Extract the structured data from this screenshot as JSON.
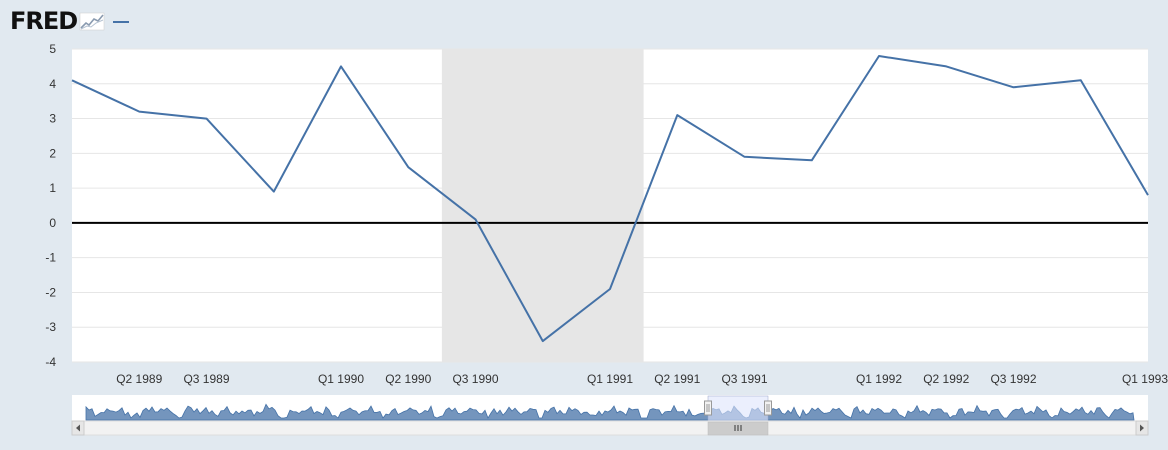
{
  "header": {
    "logo_text": "FRED",
    "logo_icon": "line-chart-icon",
    "legend_series_color": "#4572a7"
  },
  "chart_data": {
    "type": "line",
    "title": "",
    "xlabel": "",
    "ylabel": "",
    "x": [
      "Q1 1989",
      "Q2 1989",
      "Q3 1989",
      "Q4 1989",
      "Q1 1990",
      "Q2 1990",
      "Q3 1990",
      "Q4 1990",
      "Q1 1991",
      "Q2 1991",
      "Q3 1991",
      "Q4 1991",
      "Q1 1992",
      "Q2 1992",
      "Q3 1992",
      "Q4 1992",
      "Q1 1993"
    ],
    "series": [
      {
        "values": [
          4.1,
          3.2,
          3.0,
          0.9,
          4.5,
          1.6,
          0.1,
          -3.4,
          -1.9,
          3.1,
          1.9,
          1.8,
          4.8,
          4.5,
          3.9,
          4.1,
          0.8
        ],
        "color": "#4572a7"
      }
    ],
    "x_tick_labels": [
      "Q2 1989",
      "Q3 1989",
      "Q1 1990",
      "Q2 1990",
      "Q3 1990",
      "Q1 1991",
      "Q2 1991",
      "Q3 1991",
      "Q1 1992",
      "Q2 1992",
      "Q3 1992",
      "Q1 1993"
    ],
    "y_ticks": [
      5,
      4,
      3,
      2,
      1,
      0,
      -1,
      -2,
      -3,
      -4
    ],
    "ylim": [
      -4,
      5
    ],
    "xlim": [
      "Q1 1989",
      "Q1 1993"
    ],
    "grid": true,
    "recession_shading": {
      "from": "Q3 1990",
      "to": "Q1 1991",
      "color": "#e6e6e6"
    },
    "zero_line": true
  },
  "navigator": {
    "series_color": "#4572a7",
    "scroll_left_icon": "arrow-left-icon",
    "scroll_right_icon": "arrow-right-icon",
    "grip_icon": "grip-icon"
  }
}
